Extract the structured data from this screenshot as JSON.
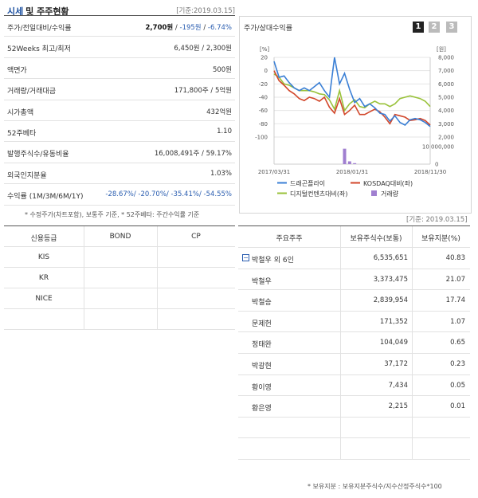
{
  "header": {
    "title_main": "시세",
    "title_sub": "및 주주현황",
    "ref_date": "[기준:2019.03.15]"
  },
  "market": {
    "rows": [
      {
        "label": "주가/전일대비/수익률"
      },
      {
        "label": "52Weeks 최고/최저",
        "value": "6,450원 / 2,300원"
      },
      {
        "label": "액면가",
        "value": "500원"
      },
      {
        "label": "거래량/거래대금",
        "value": "171,800주 / 5억원"
      },
      {
        "label": "시가총액",
        "value": "432억원"
      },
      {
        "label": "52주베타",
        "value": "1.10"
      },
      {
        "label": "발행주식수/유동비율",
        "value": "16,008,491주 / 59.17%"
      },
      {
        "label": "외국인지분율",
        "value": "1.03%"
      },
      {
        "label": "수익률 (1M/3M/6M/1Y)",
        "value": "-28.67%/ -20.70%/ -35.41%/ -54.55%"
      }
    ],
    "price": "2,700원",
    "sep": " / ",
    "change": "-195원",
    "rate": "-6.74%"
  },
  "left_note": "* 수정주가(차트포함), 보통주 기준, * 52주베타: 주간수익률 기준",
  "chart": {
    "title": "주가/상대수익률",
    "buttons": [
      "1",
      "2",
      "3"
    ],
    "left_unit": "[%]",
    "right_unit": "[원]",
    "y_left_ticks": [
      "20",
      "0",
      "-20",
      "-40",
      "-60",
      "-80",
      "-100"
    ],
    "y_right_ticks": [
      "8,000",
      "7,000",
      "6,000",
      "5,000",
      "4,000",
      "3,000",
      "2,000"
    ],
    "vol_ticks": [
      "10,000,000",
      "0"
    ],
    "x_ticks": [
      "2017/03/31",
      "2018/01/31",
      "2018/11/30"
    ],
    "legend": [
      "드래곤플라이",
      "KOSDAQ대비(좌)",
      "디지털컨텐츠대비(좌)",
      "거래량"
    ],
    "colors": {
      "price": "#3a7fd5",
      "kosdaq": "#d2462a",
      "digital": "#99c23a",
      "volume": "#a07fd0"
    }
  },
  "chart_data": {
    "type": "line",
    "x_ticks": [
      "2017/03/31",
      "2018/01/31",
      "2018/11/30"
    ],
    "left_axis": {
      "unit": "%",
      "ylim": [
        -100,
        20
      ]
    },
    "right_axis": {
      "unit": "원",
      "ylim": [
        2000,
        8000
      ]
    },
    "series": [
      {
        "name": "드래곤플라이",
        "axis": "right",
        "values": [
          7700,
          6500,
          6600,
          6100,
          5700,
          5500,
          5700,
          5500,
          5800,
          6100,
          5500,
          5000,
          8000,
          6000,
          6800,
          5600,
          4600,
          4900,
          4300,
          4500,
          4200,
          3800,
          3700,
          3200,
          3600,
          3100,
          2900,
          3300,
          3400,
          3300,
          3100,
          2800
        ]
      },
      {
        "name": "KOSDAQ대비(좌)",
        "axis": "left",
        "values": [
          0,
          -15,
          -22,
          -30,
          -35,
          -42,
          -45,
          -40,
          -42,
          -46,
          -40,
          -55,
          -64,
          -42,
          -66,
          -60,
          -52,
          -66,
          -66,
          -62,
          -58,
          -62,
          -70,
          -80,
          -66,
          -68,
          -70,
          -75,
          -74,
          -72,
          -75,
          -82
        ]
      },
      {
        "name": "디지털컨텐츠대비(좌)",
        "axis": "left",
        "values": [
          -5,
          -10,
          -20,
          -22,
          -26,
          -30,
          -30,
          -30,
          -32,
          -35,
          -36,
          -44,
          -58,
          -30,
          -60,
          -50,
          -44,
          -54,
          -56,
          -50,
          -46,
          -50,
          -50,
          -54,
          -50,
          -42,
          -40,
          -38,
          -40,
          -42,
          -46,
          -54
        ]
      },
      {
        "name": "거래량",
        "axis": "volume",
        "bar": true,
        "values": [
          0,
          0,
          0,
          0,
          0,
          0,
          0,
          0,
          0,
          0,
          0,
          0,
          0,
          0,
          11000000,
          2000000,
          700000,
          0,
          0,
          0,
          0,
          0,
          0,
          0,
          0,
          0,
          0,
          0,
          0,
          0,
          0,
          0
        ]
      }
    ],
    "volume_ylim": [
      0,
      12500000
    ]
  },
  "right_ref": "[기준: 2019.03.15]",
  "credit": {
    "headers": [
      "신용등급",
      "BOND",
      "CP"
    ],
    "rows": [
      {
        "agency": "KIS",
        "bond": "",
        "cp": ""
      },
      {
        "agency": "KR",
        "bond": "",
        "cp": ""
      },
      {
        "agency": "NICE",
        "bond": "",
        "cp": ""
      },
      {
        "agency": "",
        "bond": "",
        "cp": ""
      }
    ]
  },
  "holders": {
    "headers": [
      "주요주주",
      "보유주식수(보통)",
      "보유지분(%)"
    ],
    "expand_symbol": "−",
    "rows": [
      {
        "name": "박철우 외 6인",
        "shares": "6,535,651",
        "pct": "40.83"
      },
      {
        "name": "박철우",
        "shares": "3,373,475",
        "pct": "21.07"
      },
      {
        "name": "박철승",
        "shares": "2,839,954",
        "pct": "17.74"
      },
      {
        "name": "문제헌",
        "shares": "171,352",
        "pct": "1.07"
      },
      {
        "name": "정태완",
        "shares": "104,049",
        "pct": "0.65"
      },
      {
        "name": "박광현",
        "shares": "37,172",
        "pct": "0.23"
      },
      {
        "name": "황이영",
        "shares": "7,434",
        "pct": "0.05"
      },
      {
        "name": "황은영",
        "shares": "2,215",
        "pct": "0.01"
      }
    ],
    "note": "* 보유지분 : 보유지분주식수/지수산정주식수*100"
  }
}
